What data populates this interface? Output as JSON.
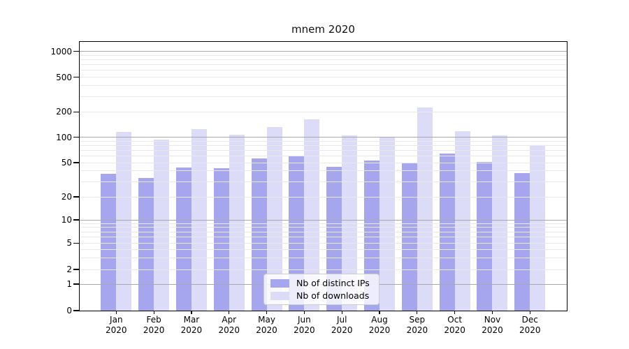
{
  "chart_data": {
    "type": "bar",
    "title": "mnem 2020",
    "categories": [
      "Jan",
      "Feb",
      "Mar",
      "Apr",
      "May",
      "Jun",
      "Jul",
      "Aug",
      "Sep",
      "Oct",
      "Nov",
      "Dec"
    ],
    "category_year_suffix": "2020",
    "series": [
      {
        "name": "Nb of distinct IPs",
        "color": "#a6a6ef",
        "values": [
          37,
          33,
          44,
          43,
          56,
          61,
          45,
          53,
          49,
          64,
          51,
          38
        ]
      },
      {
        "name": "Nb of downloads",
        "color": "#dcdcf8",
        "values": [
          115,
          94,
          125,
          108,
          132,
          162,
          105,
          101,
          223,
          117,
          106,
          79
        ]
      }
    ],
    "xlabel": "",
    "ylabel": "",
    "yscale": "symlog",
    "ylim": [
      0,
      1300
    ],
    "yticks": [
      0,
      1,
      2,
      5,
      10,
      20,
      50,
      100,
      200,
      500,
      1000
    ],
    "ytick_labels": [
      "0",
      "1",
      "2",
      "5",
      "10",
      "20",
      "50",
      "100",
      "200",
      "500",
      "1000"
    ],
    "grid": "major-and-minor, horizontal only, drawn over bars",
    "legend_position": "lower center inside plot"
  },
  "colors": {
    "background": "#ffffff",
    "bar_distinct_ips": "#a6a6ef",
    "bar_downloads": "#dcdcf8",
    "grid_major": "#a9a9a9",
    "grid_minor": "#e9e9e9",
    "spine": "#000000",
    "legend_border": "#cccccc",
    "text": "#000000"
  }
}
